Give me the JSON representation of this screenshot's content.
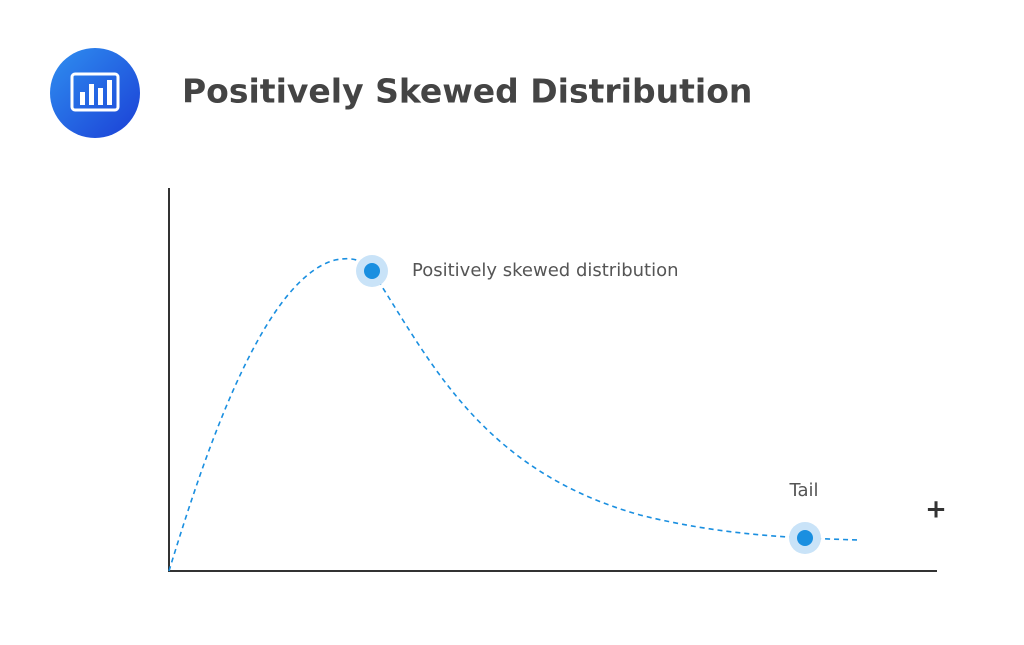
{
  "header": {
    "title": "Positively Skewed Distribution"
  },
  "annotations": {
    "peak": "Positively skewed distribution",
    "tail": "Tail",
    "axis_marker": "+"
  }
}
